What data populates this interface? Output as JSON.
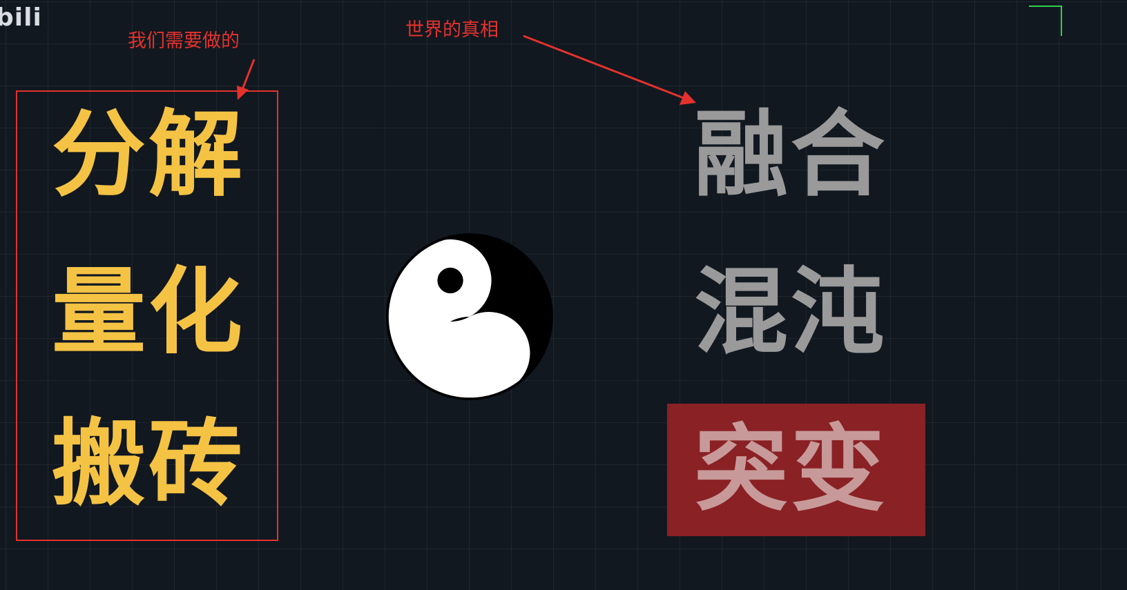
{
  "watermark": {
    "logo_text": "bili"
  },
  "annotations": {
    "left_note": "我们需要做的",
    "right_note": "世界的真相"
  },
  "left_column": {
    "words": [
      "分解",
      "量化",
      "搬砖"
    ]
  },
  "right_column": {
    "words": [
      "融合",
      "混沌",
      "突变"
    ]
  },
  "symbol": {
    "icon": "yin-yang-icon"
  },
  "colors": {
    "background": "#111820",
    "annotation_red": "#e5322d",
    "left_words": "#f5c344",
    "right_words": "#9a9a9a",
    "highlight_panel": "#8a2125",
    "corner_mark": "#2fd14a"
  }
}
